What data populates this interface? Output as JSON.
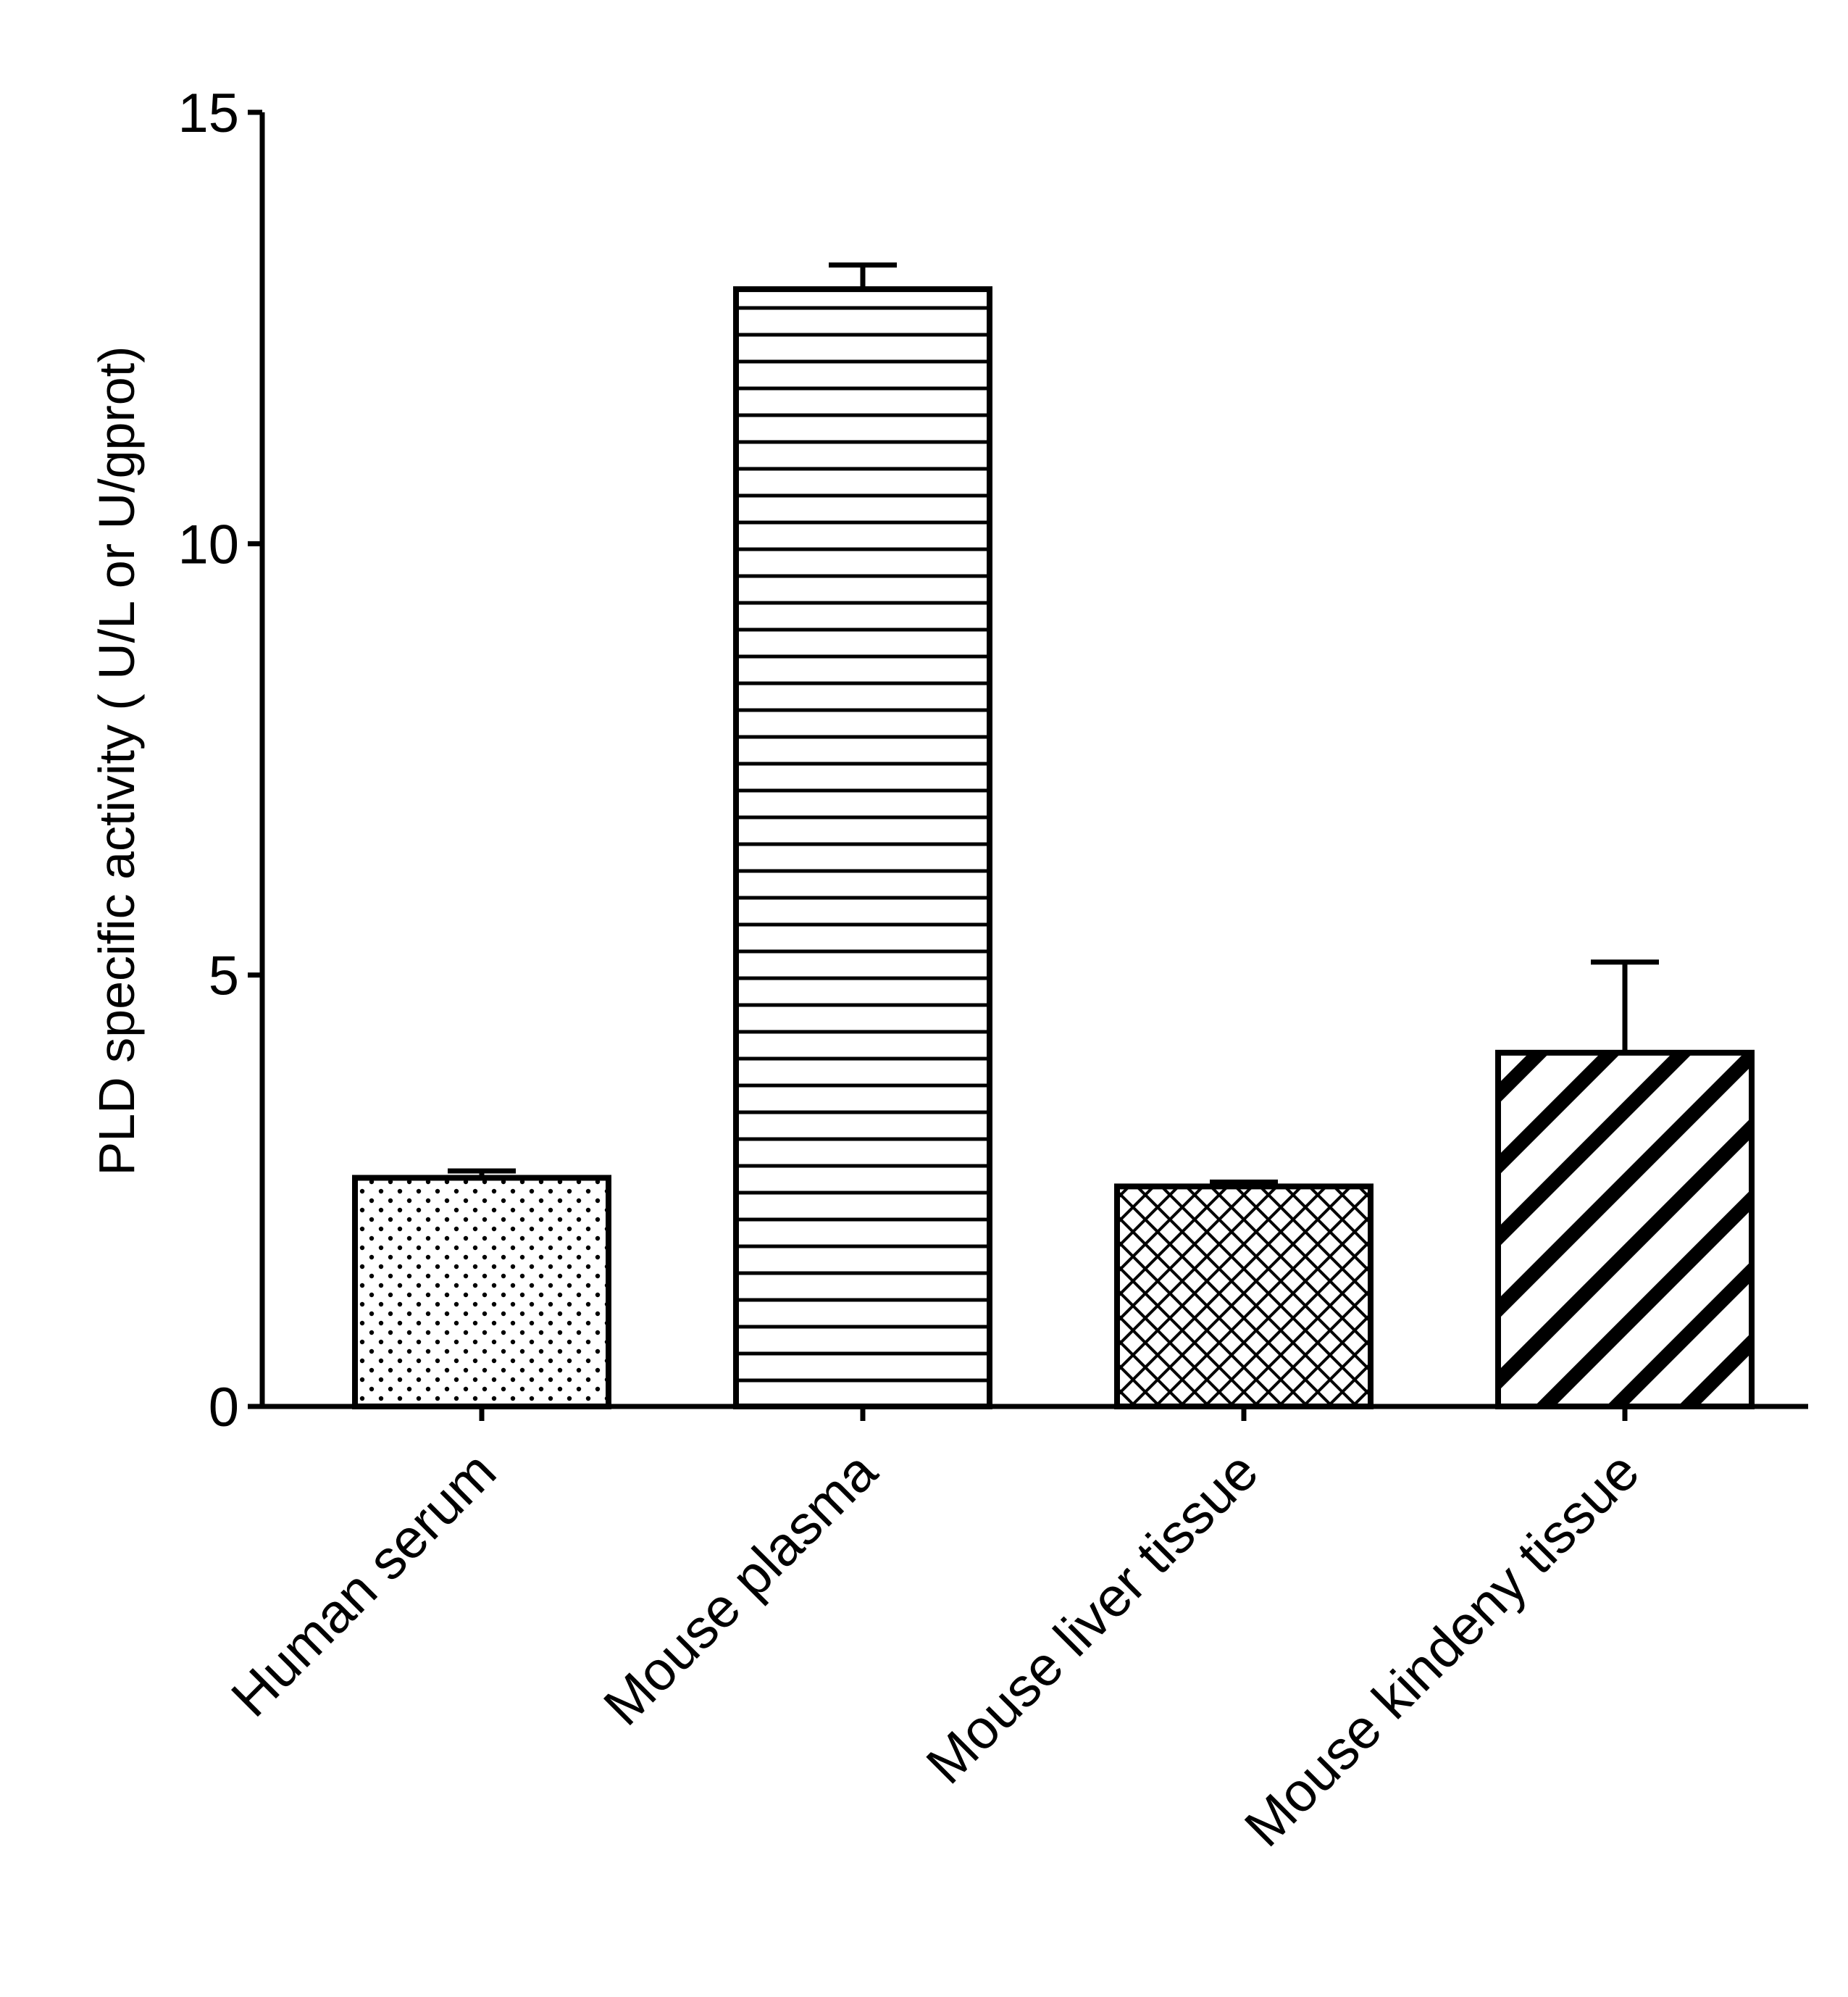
{
  "chart_data": {
    "type": "bar",
    "title": "",
    "xlabel": "",
    "ylabel": "PLD specific activity ( U/L or U/gprot)",
    "ylim": [
      0,
      15
    ],
    "yticks": [
      0,
      5,
      10,
      15
    ],
    "yticks_labels": [
      "0",
      "5",
      "10",
      "15"
    ],
    "grid": false,
    "legend": "none",
    "categories": [
      "Human serum",
      "Mouse plasma",
      "Mouse liver tissue",
      "Mouse kindeny tissue"
    ],
    "values": [
      2.65,
      12.95,
      2.55,
      4.1
    ],
    "errors": [
      0.08,
      0.28,
      0.05,
      1.05
    ],
    "patterns": [
      "dots",
      "horizontal-lines",
      "crosshatch",
      "diagonal-stripes"
    ],
    "colors": {
      "bar_fill": "#ffffff",
      "stroke": "#000000"
    }
  }
}
